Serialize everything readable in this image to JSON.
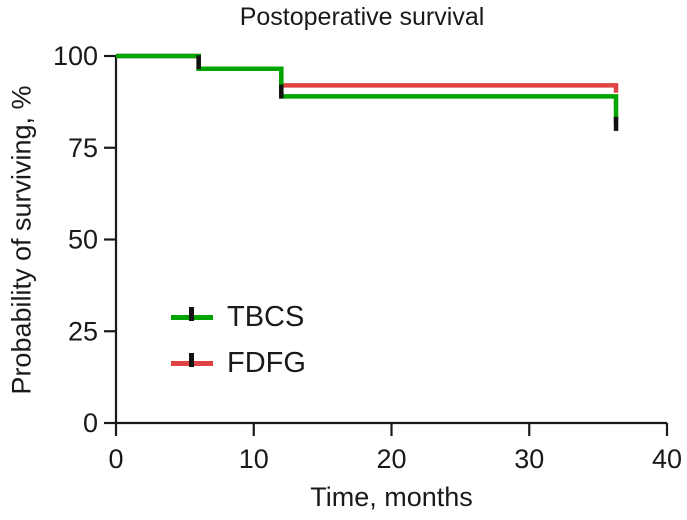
{
  "figure": {
    "background": "#ffffff",
    "text_color": "#1a1a1a",
    "axis_color": "#1a1a1a"
  },
  "chart_data": {
    "type": "line",
    "subtype": "kaplan-meier-step",
    "title": "Postoperative survival",
    "xlabel": "Time, months",
    "ylabel": "Probability of surviving, %",
    "xlim": [
      0,
      40
    ],
    "ylim": [
      0,
      100
    ],
    "xticks": [
      0,
      10,
      20,
      30,
      40
    ],
    "yticks": [
      0,
      25,
      50,
      75,
      100
    ],
    "grid": false,
    "legend_position": "inside-left-center",
    "series": [
      {
        "name": "FDFG",
        "color": "#e04343",
        "step_points": [
          [
            0,
            100
          ],
          [
            6,
            100
          ],
          [
            6,
            96.5
          ],
          [
            12,
            96.5
          ],
          [
            12,
            92
          ],
          [
            36.3,
            92
          ],
          [
            36.3,
            90
          ]
        ]
      },
      {
        "name": "TBCS",
        "color": "#00a400",
        "step_points": [
          [
            0,
            100
          ],
          [
            6,
            100
          ],
          [
            6,
            96.5
          ],
          [
            12,
            96.5
          ],
          [
            12,
            89
          ],
          [
            36.3,
            89
          ],
          [
            36.3,
            82
          ]
        ]
      }
    ],
    "censor_marks": [
      {
        "x": 6,
        "y": 98.3
      },
      {
        "x": 12,
        "y": 90.3
      },
      {
        "x": 36.3,
        "y": 81.5
      }
    ],
    "censor_color": "#111111"
  },
  "legend": {
    "items": [
      {
        "label": "TBCS",
        "color": "#00a400"
      },
      {
        "label": "FDFG",
        "color": "#e04343"
      }
    ]
  }
}
